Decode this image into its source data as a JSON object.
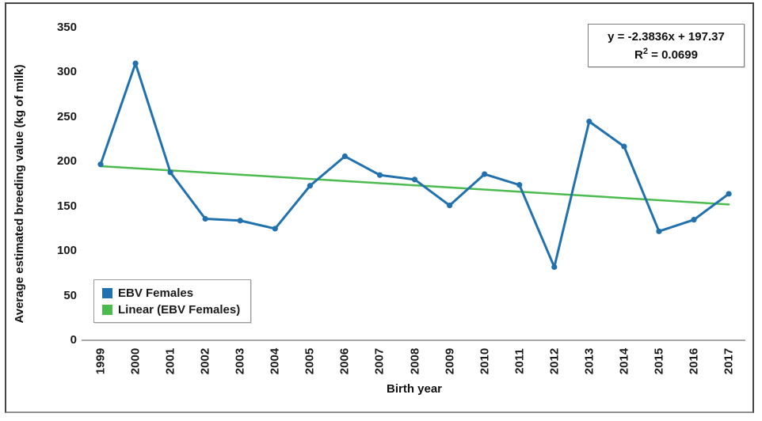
{
  "chart_data": {
    "type": "line",
    "x": [
      1999,
      2000,
      2001,
      2002,
      2003,
      2004,
      2005,
      2006,
      2007,
      2008,
      2009,
      2010,
      2011,
      2012,
      2013,
      2014,
      2015,
      2016,
      2017
    ],
    "series": [
      {
        "name": "EBV Females",
        "color": "#2071ae",
        "marker": "circle",
        "values": [
          197,
          310,
          188,
          136,
          134,
          125,
          173,
          206,
          185,
          180,
          151,
          186,
          174,
          82,
          245,
          217,
          122,
          135,
          164
        ]
      },
      {
        "name": "Linear (EBV Females)",
        "color": "#4cbb4f",
        "style": "trendline",
        "slope": -2.3836,
        "intercept": 197.37,
        "x_index_base": 1
      }
    ],
    "title": "",
    "xlabel": "Birth year",
    "ylabel": "Average estimated breeding value (kg of milk)",
    "ylim": [
      0,
      350
    ],
    "yticks": [
      0,
      50,
      100,
      150,
      200,
      250,
      300,
      350
    ],
    "grid": false,
    "legend_position": "inside-bottom-left",
    "axis_color": "#a6a6a6",
    "equation": "y = -2.3836x + 197.37",
    "r_squared": 0.0699
  },
  "annotation": {
    "equation": "y = -2.3836x + 197.37",
    "r_label": "R",
    "r_exponent": "2",
    "r_value": " = 0.0699"
  },
  "legend": {
    "items": [
      {
        "label": "EBV Females",
        "color": "#2071ae"
      },
      {
        "label": "Linear (EBV Females)",
        "color": "#4cbb4f"
      }
    ]
  },
  "axes": {
    "x_title": "Birth year",
    "y_title": "Average estimated breeding value (kg of milk)"
  }
}
